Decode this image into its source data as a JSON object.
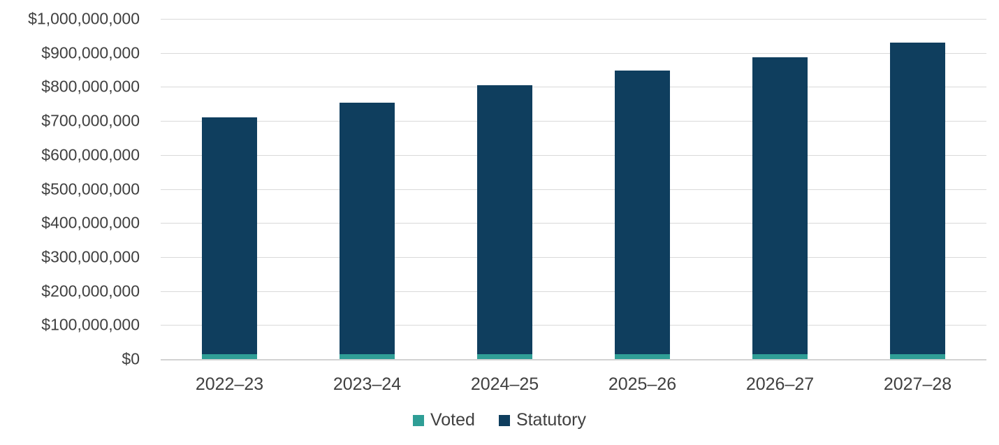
{
  "chart_data": {
    "type": "bar",
    "stacked": true,
    "title": "",
    "xlabel": "",
    "ylabel": "",
    "grid": true,
    "legend_position": "bottom-center",
    "categories": [
      "2022–23",
      "2023–24",
      "2024–25",
      "2025–26",
      "2026–27",
      "2027–28"
    ],
    "series": [
      {
        "name": "Voted",
        "color": "#2f9e96",
        "values": [
          15000000,
          15000000,
          15000000,
          15000000,
          15000000,
          15000000
        ]
      },
      {
        "name": "Statutory",
        "color": "#0f3e5e",
        "values": [
          695000000,
          739000000,
          790000000,
          833000000,
          872000000,
          916000000
        ]
      }
    ],
    "totals": [
      710000000,
      754000000,
      805000000,
      848000000,
      887000000,
      931000000
    ],
    "ylim": [
      0,
      1000000000
    ],
    "y_ticks": [
      {
        "value": 0,
        "label": "$0"
      },
      {
        "value": 100000000,
        "label": "$100,000,000"
      },
      {
        "value": 200000000,
        "label": "$200,000,000"
      },
      {
        "value": 300000000,
        "label": "$300,000,000"
      },
      {
        "value": 400000000,
        "label": "$400,000,000"
      },
      {
        "value": 500000000,
        "label": "$500,000,000"
      },
      {
        "value": 600000000,
        "label": "$600,000,000"
      },
      {
        "value": 700000000,
        "label": "$700,000,000"
      },
      {
        "value": 800000000,
        "label": "$800,000,000"
      },
      {
        "value": 900000000,
        "label": "$900,000,000"
      },
      {
        "value": 1000000000,
        "label": "$1,000,000,000"
      }
    ],
    "colors": {
      "text": "#404040",
      "gridline": "#d9d9d9",
      "background": "#ffffff"
    }
  }
}
